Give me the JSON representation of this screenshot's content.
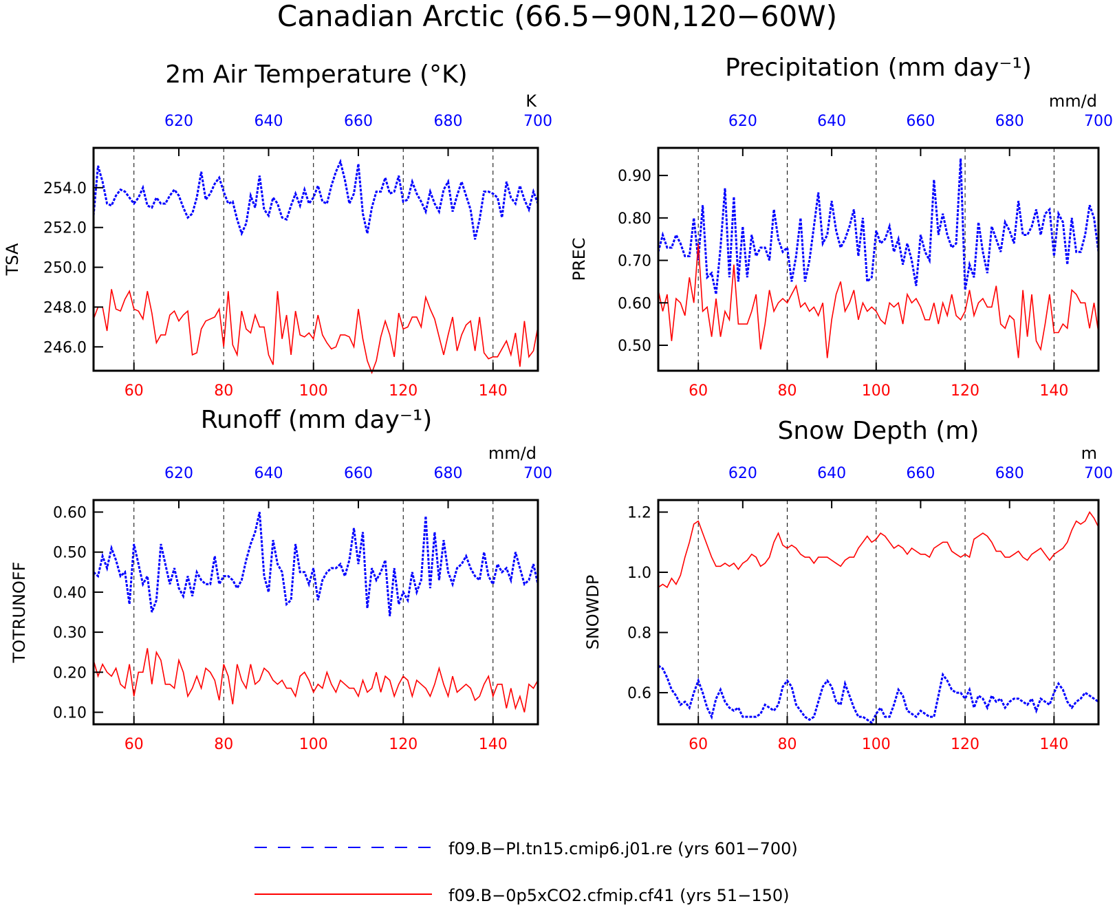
{
  "title": "Canadian Arctic (66.5−90N,120−60W)",
  "colors": {
    "red": "#ff0000",
    "blue": "#0000ff",
    "axis": "#000000"
  },
  "legend": {
    "blue_label": "f09.B−PI.tn15.cmip6.j01.re (yrs 601−700)",
    "red_label": "f09.B−0p5xCO2.cfmip.cf41 (yrs 51−150)"
  },
  "chart_data": [
    {
      "type": "line",
      "title": "2m Air Temperature (°K)",
      "ylabel": "TSA",
      "units": "K",
      "yticks": [
        "246.0",
        "248.0",
        "250.0",
        "252.0",
        "254.0"
      ],
      "ylim": [
        244.8,
        256.0
      ],
      "x_bottom_ticks": [
        "60",
        "80",
        "100",
        "120",
        "140"
      ],
      "x_top_ticks": [
        "620",
        "640",
        "660",
        "680",
        "700"
      ],
      "xlim": [
        51,
        150
      ],
      "series": [
        {
          "name": "f09.B−PI.tn15.cmip6.j01.re (yrs 601−700)",
          "years": "601-700",
          "values": [
            252.6,
            255.1,
            254.3,
            253.2,
            253.1,
            253.6,
            253.9,
            253.8,
            253.5,
            253.2,
            253.5,
            254.0,
            253.1,
            253.0,
            253.5,
            253.2,
            253.2,
            253.6,
            253.9,
            253.6,
            253.0,
            252.5,
            252.7,
            253.5,
            254.8,
            253.4,
            253.7,
            254.2,
            254.5,
            253.8,
            253.2,
            253.3,
            252.4,
            251.7,
            252.2,
            253.6,
            253.0,
            254.6,
            252.9,
            252.6,
            253.5,
            253.2,
            252.5,
            252.4,
            253.1,
            253.7,
            253.1,
            253.9,
            253.2,
            253.5,
            254.1,
            253.3,
            253.2,
            254.1,
            254.8,
            255.3,
            254.4,
            253.2,
            253.7,
            255.2,
            252.7,
            251.7,
            253.0,
            253.8,
            253.8,
            254.5,
            253.7,
            253.8,
            254.6,
            253.3,
            253.4,
            254.3,
            253.7,
            253.3,
            252.8,
            253.8,
            253.2,
            252.8,
            253.9,
            254.3,
            252.8,
            253.6,
            254.3,
            253.6,
            252.9,
            251.4,
            252.4,
            253.8,
            253.8,
            253.7,
            253.5,
            252.5,
            254.3,
            253.5,
            253.2,
            254.1,
            253.4,
            252.9,
            253.8,
            253.2
          ]
        },
        {
          "name": "f09.B−0p5xCO2.cfmip.cf41 (yrs 51−150)",
          "years": "51-150",
          "values": [
            247.4,
            248.0,
            248.0,
            246.8,
            248.9,
            247.9,
            247.8,
            248.4,
            248.8,
            247.9,
            247.8,
            247.4,
            248.8,
            247.7,
            246.2,
            246.6,
            246.6,
            247.6,
            247.8,
            247.3,
            247.6,
            247.8,
            245.6,
            245.7,
            246.9,
            247.3,
            247.4,
            247.5,
            247.9,
            246.0,
            248.8,
            246.1,
            245.6,
            247.8,
            246.9,
            246.7,
            247.6,
            247.0,
            247.0,
            245.6,
            245.1,
            248.8,
            246.4,
            247.6,
            245.6,
            247.8,
            246.6,
            246.5,
            246.7,
            246.4,
            247.6,
            246.6,
            246.2,
            245.9,
            246.0,
            246.6,
            246.6,
            246.5,
            246.0,
            247.9,
            246.4,
            245.3,
            244.7,
            245.3,
            246.5,
            247.3,
            246.6,
            245.5,
            247.7,
            246.9,
            247.0,
            247.5,
            247.5,
            247.0,
            248.5,
            247.9,
            247.4,
            246.5,
            245.6,
            246.6,
            247.5,
            245.8,
            246.6,
            247.1,
            247.3,
            245.8,
            247.5,
            245.7,
            245.4,
            245.5,
            245.5,
            245.9,
            246.3,
            245.6,
            246.7,
            245.0,
            247.3,
            245.5,
            245.8,
            247.0
          ]
        }
      ]
    },
    {
      "type": "line",
      "title": "Precipitation (mm day⁻¹)",
      "ylabel": "PREC",
      "units": "mm/d",
      "yticks": [
        "0.50",
        "0.60",
        "0.70",
        "0.80",
        "0.90"
      ],
      "ylim": [
        0.44,
        0.965
      ],
      "x_bottom_ticks": [
        "60",
        "80",
        "100",
        "120",
        "140"
      ],
      "x_top_ticks": [
        "620",
        "640",
        "660",
        "680",
        "700"
      ],
      "xlim": [
        51,
        150
      ],
      "series": [
        {
          "name": "f09.B−PI.tn15.cmip6.j01.re (yrs 601−700)",
          "years": "601-700",
          "values": [
            0.72,
            0.76,
            0.73,
            0.73,
            0.76,
            0.74,
            0.71,
            0.71,
            0.8,
            0.7,
            0.83,
            0.66,
            0.67,
            0.62,
            0.73,
            0.87,
            0.66,
            0.85,
            0.65,
            0.78,
            0.66,
            0.76,
            0.71,
            0.73,
            0.73,
            0.7,
            0.82,
            0.75,
            0.72,
            0.73,
            0.65,
            0.71,
            0.8,
            0.65,
            0.7,
            0.78,
            0.86,
            0.74,
            0.76,
            0.84,
            0.77,
            0.73,
            0.75,
            0.78,
            0.82,
            0.71,
            0.8,
            0.65,
            0.66,
            0.77,
            0.74,
            0.75,
            0.78,
            0.72,
            0.75,
            0.69,
            0.74,
            0.7,
            0.64,
            0.76,
            0.72,
            0.7,
            0.89,
            0.76,
            0.81,
            0.76,
            0.73,
            0.74,
            0.94,
            0.63,
            0.69,
            0.66,
            0.79,
            0.72,
            0.67,
            0.78,
            0.75,
            0.72,
            0.79,
            0.77,
            0.74,
            0.84,
            0.76,
            0.76,
            0.78,
            0.82,
            0.76,
            0.81,
            0.82,
            0.71,
            0.81,
            0.79,
            0.69,
            0.8,
            0.72,
            0.72,
            0.76,
            0.83,
            0.8,
            0.72
          ]
        },
        {
          "name": "f09.B−0p5xCO2.cfmip.cf41 (yrs 51−150)",
          "years": "51-150",
          "values": [
            0.63,
            0.58,
            0.62,
            0.51,
            0.61,
            0.6,
            0.57,
            0.66,
            0.6,
            0.74,
            0.58,
            0.59,
            0.52,
            0.61,
            0.52,
            0.58,
            0.56,
            0.69,
            0.55,
            0.55,
            0.55,
            0.58,
            0.62,
            0.49,
            0.55,
            0.63,
            0.58,
            0.6,
            0.61,
            0.6,
            0.62,
            0.64,
            0.59,
            0.6,
            0.58,
            0.59,
            0.57,
            0.6,
            0.47,
            0.56,
            0.62,
            0.65,
            0.58,
            0.6,
            0.63,
            0.56,
            0.6,
            0.58,
            0.59,
            0.58,
            0.56,
            0.55,
            0.6,
            0.59,
            0.6,
            0.55,
            0.62,
            0.6,
            0.61,
            0.59,
            0.56,
            0.56,
            0.6,
            0.55,
            0.6,
            0.57,
            0.62,
            0.57,
            0.56,
            0.58,
            0.63,
            0.57,
            0.6,
            0.61,
            0.59,
            0.59,
            0.64,
            0.55,
            0.54,
            0.57,
            0.56,
            0.47,
            0.63,
            0.52,
            0.62,
            0.51,
            0.49,
            0.55,
            0.62,
            0.53,
            0.53,
            0.55,
            0.54,
            0.63,
            0.62,
            0.6,
            0.6,
            0.54,
            0.6,
            0.53
          ]
        }
      ]
    },
    {
      "type": "line",
      "title": "Runoff (mm day⁻¹)",
      "ylabel": "TOTRUNOFF",
      "units": "mm/d",
      "yticks": [
        "0.10",
        "0.20",
        "0.30",
        "0.40",
        "0.50",
        "0.60"
      ],
      "ylim": [
        0.07,
        0.63
      ],
      "x_bottom_ticks": [
        "60",
        "80",
        "100",
        "120",
        "140"
      ],
      "x_top_ticks": [
        "620",
        "640",
        "660",
        "680",
        "700"
      ],
      "xlim": [
        51,
        150
      ],
      "series": [
        {
          "name": "f09.B−PI.tn15.cmip6.j01.re (yrs 601−700)",
          "years": "601-700",
          "values": [
            0.45,
            0.44,
            0.49,
            0.46,
            0.51,
            0.48,
            0.44,
            0.45,
            0.37,
            0.52,
            0.47,
            0.42,
            0.44,
            0.35,
            0.38,
            0.52,
            0.47,
            0.42,
            0.46,
            0.41,
            0.39,
            0.44,
            0.39,
            0.45,
            0.43,
            0.42,
            0.42,
            0.49,
            0.42,
            0.44,
            0.44,
            0.43,
            0.41,
            0.43,
            0.48,
            0.52,
            0.55,
            0.6,
            0.44,
            0.4,
            0.53,
            0.47,
            0.45,
            0.37,
            0.38,
            0.52,
            0.45,
            0.45,
            0.42,
            0.46,
            0.38,
            0.43,
            0.45,
            0.46,
            0.46,
            0.47,
            0.44,
            0.48,
            0.56,
            0.47,
            0.55,
            0.36,
            0.46,
            0.43,
            0.45,
            0.48,
            0.34,
            0.46,
            0.37,
            0.4,
            0.38,
            0.45,
            0.4,
            0.43,
            0.59,
            0.41,
            0.55,
            0.43,
            0.53,
            0.45,
            0.42,
            0.46,
            0.47,
            0.49,
            0.46,
            0.44,
            0.43,
            0.5,
            0.44,
            0.42,
            0.47,
            0.45,
            0.46,
            0.43,
            0.5,
            0.46,
            0.42,
            0.43,
            0.47,
            0.42
          ]
        },
        {
          "name": "f09.B−0p5xCO2.cfmip.cf41 (yrs 51−150)",
          "years": "51-150",
          "values": [
            0.23,
            0.19,
            0.22,
            0.2,
            0.19,
            0.21,
            0.17,
            0.16,
            0.22,
            0.14,
            0.2,
            0.2,
            0.26,
            0.17,
            0.25,
            0.23,
            0.17,
            0.17,
            0.16,
            0.23,
            0.2,
            0.14,
            0.16,
            0.19,
            0.16,
            0.21,
            0.2,
            0.18,
            0.13,
            0.22,
            0.19,
            0.12,
            0.22,
            0.18,
            0.16,
            0.22,
            0.17,
            0.18,
            0.21,
            0.2,
            0.18,
            0.17,
            0.18,
            0.16,
            0.16,
            0.14,
            0.19,
            0.2,
            0.18,
            0.15,
            0.17,
            0.16,
            0.2,
            0.17,
            0.15,
            0.18,
            0.17,
            0.16,
            0.16,
            0.14,
            0.18,
            0.15,
            0.16,
            0.2,
            0.15,
            0.19,
            0.18,
            0.14,
            0.17,
            0.19,
            0.18,
            0.14,
            0.18,
            0.17,
            0.16,
            0.14,
            0.17,
            0.21,
            0.17,
            0.14,
            0.19,
            0.15,
            0.16,
            0.17,
            0.16,
            0.13,
            0.14,
            0.17,
            0.19,
            0.14,
            0.17,
            0.17,
            0.11,
            0.16,
            0.11,
            0.14,
            0.1,
            0.17,
            0.16,
            0.18
          ]
        }
      ]
    },
    {
      "type": "line",
      "title": "Snow Depth (m)",
      "ylabel": "SNOWDP",
      "units": "m",
      "yticks": [
        "0.6",
        "0.8",
        "1.0",
        "1.2"
      ],
      "ylim": [
        0.495,
        1.24
      ],
      "x_bottom_ticks": [
        "60",
        "80",
        "100",
        "120",
        "140"
      ],
      "x_top_ticks": [
        "620",
        "640",
        "660",
        "680",
        "700"
      ],
      "xlim": [
        51,
        150
      ],
      "series": [
        {
          "name": "f09.B−PI.tn15.cmip6.j01.re (yrs 601−700)",
          "years": "601-700",
          "values": [
            0.69,
            0.68,
            0.65,
            0.61,
            0.59,
            0.56,
            0.57,
            0.55,
            0.6,
            0.64,
            0.6,
            0.55,
            0.52,
            0.58,
            0.61,
            0.57,
            0.55,
            0.54,
            0.55,
            0.52,
            0.52,
            0.52,
            0.52,
            0.53,
            0.56,
            0.55,
            0.54,
            0.56,
            0.62,
            0.64,
            0.62,
            0.56,
            0.54,
            0.52,
            0.51,
            0.52,
            0.57,
            0.62,
            0.64,
            0.62,
            0.57,
            0.56,
            0.63,
            0.59,
            0.55,
            0.52,
            0.52,
            0.51,
            0.5,
            0.53,
            0.55,
            0.52,
            0.52,
            0.56,
            0.61,
            0.59,
            0.54,
            0.53,
            0.52,
            0.54,
            0.53,
            0.52,
            0.52,
            0.59,
            0.66,
            0.64,
            0.61,
            0.6,
            0.6,
            0.58,
            0.61,
            0.55,
            0.59,
            0.58,
            0.55,
            0.59,
            0.57,
            0.58,
            0.55,
            0.57,
            0.58,
            0.58,
            0.57,
            0.56,
            0.58,
            0.54,
            0.58,
            0.57,
            0.56,
            0.6,
            0.63,
            0.61,
            0.57,
            0.55,
            0.57,
            0.58,
            0.6,
            0.59,
            0.58,
            0.57
          ]
        },
        {
          "name": "f09.B−0p5xCO2.cfmip.cf41 (yrs 51−150)",
          "years": "51-150",
          "values": [
            0.95,
            0.96,
            0.95,
            0.98,
            0.96,
            0.99,
            1.05,
            1.1,
            1.16,
            1.17,
            1.13,
            1.09,
            1.05,
            1.02,
            1.02,
            1.03,
            1.02,
            1.03,
            1.01,
            1.03,
            1.04,
            1.06,
            1.05,
            1.02,
            1.03,
            1.05,
            1.1,
            1.13,
            1.09,
            1.08,
            1.09,
            1.08,
            1.06,
            1.05,
            1.05,
            1.03,
            1.05,
            1.05,
            1.05,
            1.04,
            1.03,
            1.02,
            1.04,
            1.05,
            1.05,
            1.08,
            1.1,
            1.12,
            1.1,
            1.11,
            1.13,
            1.12,
            1.1,
            1.08,
            1.09,
            1.08,
            1.06,
            1.08,
            1.07,
            1.06,
            1.06,
            1.05,
            1.08,
            1.09,
            1.1,
            1.1,
            1.07,
            1.06,
            1.05,
            1.06,
            1.05,
            1.11,
            1.12,
            1.13,
            1.12,
            1.1,
            1.07,
            1.07,
            1.05,
            1.05,
            1.06,
            1.07,
            1.05,
            1.04,
            1.06,
            1.07,
            1.08,
            1.06,
            1.04,
            1.06,
            1.07,
            1.08,
            1.1,
            1.14,
            1.17,
            1.16,
            1.17,
            1.2,
            1.18,
            1.15
          ]
        }
      ]
    }
  ]
}
